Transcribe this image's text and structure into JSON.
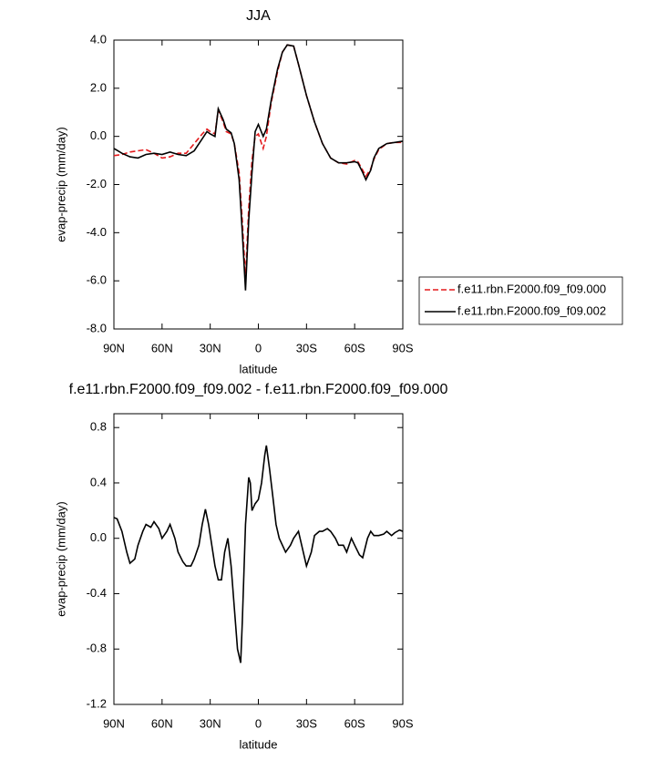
{
  "chart_data": [
    {
      "type": "line",
      "title": "JJA",
      "xlabel": "latitude",
      "ylabel": "evap-precip (mm/day)",
      "xlim": [
        90,
        -90
      ],
      "ylim": [
        -8,
        4
      ],
      "xticks": [
        {
          "value": 90,
          "label": "90N"
        },
        {
          "value": 60,
          "label": "60N"
        },
        {
          "value": 30,
          "label": "30N"
        },
        0,
        {
          "value": -30,
          "label": "30S"
        },
        {
          "value": -60,
          "label": "60S"
        },
        {
          "value": -90,
          "label": "90S"
        }
      ],
      "yticks": [
        {
          "value": -8,
          "label": "-8.0"
        },
        {
          "value": -6,
          "label": "-6.0"
        },
        {
          "value": -4,
          "label": "-4.0"
        },
        {
          "value": -2,
          "label": "-2.0"
        },
        {
          "value": 0,
          "label": "0.0"
        },
        {
          "value": 2,
          "label": "2.0"
        },
        {
          "value": 4,
          "label": "4.0"
        }
      ],
      "legend": "outside right",
      "x": [
        90,
        85,
        80,
        75,
        70,
        65,
        60,
        55,
        50,
        45,
        40,
        35,
        32,
        30,
        27,
        25,
        22,
        20,
        17,
        15,
        12,
        10,
        8,
        6,
        4,
        2,
        0,
        -3,
        -5,
        -8,
        -12,
        -15,
        -18,
        -22,
        -25,
        -30,
        -35,
        -40,
        -45,
        -50,
        -55,
        -60,
        -62,
        -65,
        -67,
        -70,
        -72,
        -75,
        -80,
        -85,
        -90
      ],
      "series": [
        {
          "name": "f.e11.rbn.F2000.f09_f09.000",
          "color": "#e41a1c",
          "style": "dashed",
          "values": [
            -0.8,
            -0.75,
            -0.65,
            -0.6,
            -0.55,
            -0.7,
            -0.9,
            -0.85,
            -0.7,
            -0.7,
            -0.3,
            0.1,
            0.3,
            0.2,
            0.1,
            1.1,
            0.6,
            0.2,
            0.1,
            -0.3,
            -1.5,
            -3.5,
            -5.9,
            -3.0,
            -1.0,
            0.0,
            0.1,
            -0.5,
            0.0,
            1.4,
            2.7,
            3.5,
            3.8,
            3.75,
            3.0,
            1.7,
            0.6,
            -0.3,
            -0.9,
            -1.1,
            -1.15,
            -1.0,
            -1.05,
            -1.4,
            -1.65,
            -1.35,
            -0.95,
            -0.55,
            -0.3,
            -0.25,
            -0.25
          ]
        },
        {
          "name": "f.e11.rbn.F2000.f09_f09.002",
          "color": "#000000",
          "style": "solid",
          "values": [
            -0.5,
            -0.7,
            -0.85,
            -0.9,
            -0.75,
            -0.7,
            -0.75,
            -0.65,
            -0.75,
            -0.8,
            -0.6,
            -0.1,
            0.2,
            0.1,
            0.0,
            1.15,
            0.7,
            0.3,
            0.15,
            -0.3,
            -1.8,
            -4.0,
            -6.4,
            -3.5,
            -1.5,
            0.2,
            0.5,
            0.0,
            0.3,
            1.5,
            2.8,
            3.5,
            3.8,
            3.75,
            3.0,
            1.7,
            0.6,
            -0.3,
            -0.9,
            -1.1,
            -1.1,
            -1.05,
            -1.1,
            -1.5,
            -1.8,
            -1.4,
            -0.9,
            -0.5,
            -0.3,
            -0.25,
            -0.2
          ]
        }
      ]
    },
    {
      "type": "line",
      "title": "f.e11.rbn.F2000.f09_f09.002 - f.e11.rbn.F2000.f09_f09.000",
      "xlabel": "latitude",
      "ylabel": "evap-precip (mm/day)",
      "xlim": [
        90,
        -90
      ],
      "ylim": [
        -1.2,
        0.9
      ],
      "xticks": [
        {
          "value": 90,
          "label": "90N"
        },
        {
          "value": 60,
          "label": "60N"
        },
        {
          "value": 30,
          "label": "30N"
        },
        0,
        {
          "value": -30,
          "label": "30S"
        },
        {
          "value": -60,
          "label": "60S"
        },
        {
          "value": -90,
          "label": "90S"
        }
      ],
      "yticks": [
        -1.2,
        -0.8,
        -0.4,
        {
          "value": 0,
          "label": "0.0"
        },
        0.4,
        0.8
      ],
      "color": "#000000",
      "x": [
        90,
        88,
        85,
        82,
        80,
        77,
        75,
        72,
        70,
        67,
        65,
        62,
        60,
        57,
        55,
        52,
        50,
        47,
        45,
        42,
        40,
        37,
        35,
        33,
        31,
        29,
        27,
        25,
        23,
        21,
        19,
        17,
        15,
        13,
        11,
        10,
        8,
        6,
        5,
        4,
        2,
        0,
        -2,
        -4,
        -5,
        -7,
        -9,
        -11,
        -13,
        -15,
        -17,
        -20,
        -22,
        -25,
        -28,
        -30,
        -33,
        -35,
        -38,
        -40,
        -43,
        -45,
        -48,
        -50,
        -53,
        -55,
        -58,
        -60,
        -63,
        -65,
        -68,
        -70,
        -72,
        -75,
        -78,
        -80,
        -83,
        -85,
        -88,
        -90
      ],
      "values": [
        0.15,
        0.14,
        0.05,
        -0.1,
        -0.18,
        -0.15,
        -0.05,
        0.05,
        0.1,
        0.08,
        0.12,
        0.07,
        0.0,
        0.05,
        0.1,
        0.0,
        -0.1,
        -0.17,
        -0.2,
        -0.2,
        -0.15,
        -0.05,
        0.1,
        0.21,
        0.1,
        -0.05,
        -0.2,
        -0.3,
        -0.3,
        -0.1,
        0.0,
        -0.2,
        -0.5,
        -0.8,
        -0.9,
        -0.6,
        0.1,
        0.44,
        0.4,
        0.2,
        0.25,
        0.28,
        0.4,
        0.6,
        0.67,
        0.5,
        0.3,
        0.1,
        0.0,
        -0.05,
        -0.1,
        -0.05,
        0.0,
        0.05,
        -0.1,
        -0.2,
        -0.1,
        0.02,
        0.05,
        0.05,
        0.07,
        0.05,
        0.0,
        -0.05,
        -0.05,
        -0.1,
        0.0,
        -0.05,
        -0.12,
        -0.14,
        0.0,
        0.05,
        0.02,
        0.02,
        0.03,
        0.05,
        0.02,
        0.04,
        0.06,
        0.05
      ]
    }
  ]
}
